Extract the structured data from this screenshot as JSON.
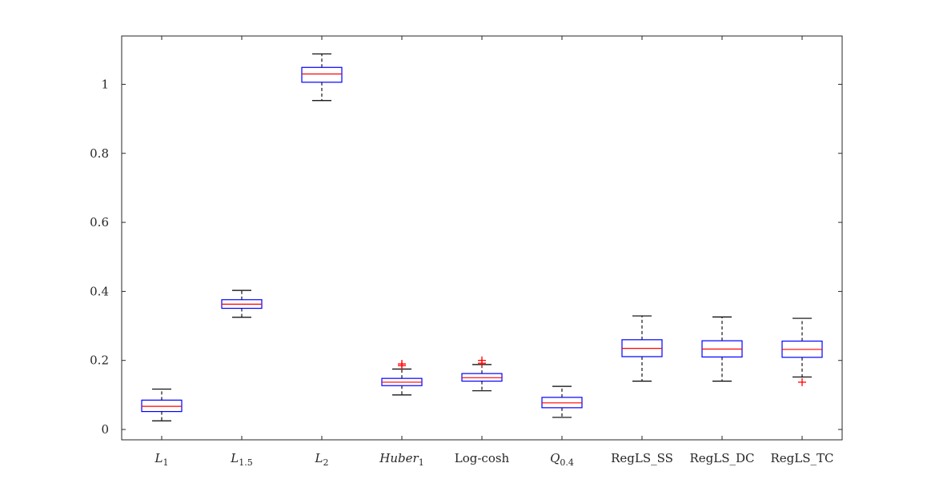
{
  "chart_data": {
    "type": "boxplot",
    "title": "",
    "xlabel": "",
    "ylabel": "",
    "ylim": [
      -0.03,
      1.14
    ],
    "yticks": [
      0,
      0.2,
      0.4,
      0.6,
      0.8,
      1
    ],
    "ytick_labels": [
      "0",
      "0.2",
      "0.4",
      "0.6",
      "0.8",
      "1"
    ],
    "grid": false,
    "colors": {
      "box": "#0000ff",
      "median": "#ff0000",
      "whisker": "#000000",
      "outlier": "#ff0000",
      "axis": "#262626"
    },
    "boxes": [
      {
        "label_base": "L",
        "label_sub": "1",
        "italic": true,
        "min": 0.025,
        "q1": 0.052,
        "median": 0.067,
        "q3": 0.085,
        "max": 0.117,
        "outliers": []
      },
      {
        "label_base": "L",
        "label_sub": "1.5",
        "italic": true,
        "min": 0.325,
        "q1": 0.351,
        "median": 0.363,
        "q3": 0.376,
        "max": 0.403,
        "outliers": []
      },
      {
        "label_base": "L",
        "label_sub": "2",
        "italic": true,
        "min": 0.953,
        "q1": 1.006,
        "median": 1.03,
        "q3": 1.049,
        "max": 1.088,
        "outliers": []
      },
      {
        "label_base": "Huber",
        "label_sub": "1",
        "italic": true,
        "min": 0.1,
        "q1": 0.127,
        "median": 0.137,
        "q3": 0.148,
        "max": 0.175,
        "outliers": [
          0.185,
          0.19
        ]
      },
      {
        "label_base": "Log-cosh",
        "label_sub": "",
        "italic": false,
        "min": 0.112,
        "q1": 0.14,
        "median": 0.15,
        "q3": 0.162,
        "max": 0.188,
        "outliers": [
          0.192,
          0.2
        ]
      },
      {
        "label_base": "Q",
        "label_sub": "0.4",
        "italic": true,
        "min": 0.035,
        "q1": 0.063,
        "median": 0.077,
        "q3": 0.093,
        "max": 0.125,
        "outliers": []
      },
      {
        "label_base": "RegLS_SS",
        "label_sub": "",
        "italic": false,
        "min": 0.14,
        "q1": 0.211,
        "median": 0.235,
        "q3": 0.26,
        "max": 0.329,
        "outliers": []
      },
      {
        "label_base": "RegLS_DC",
        "label_sub": "",
        "italic": false,
        "min": 0.14,
        "q1": 0.21,
        "median": 0.233,
        "q3": 0.257,
        "max": 0.326,
        "outliers": []
      },
      {
        "label_base": "RegLS_TC",
        "label_sub": "",
        "italic": false,
        "min": 0.152,
        "q1": 0.209,
        "median": 0.232,
        "q3": 0.256,
        "max": 0.322,
        "outliers": [
          0.137
        ]
      }
    ]
  }
}
